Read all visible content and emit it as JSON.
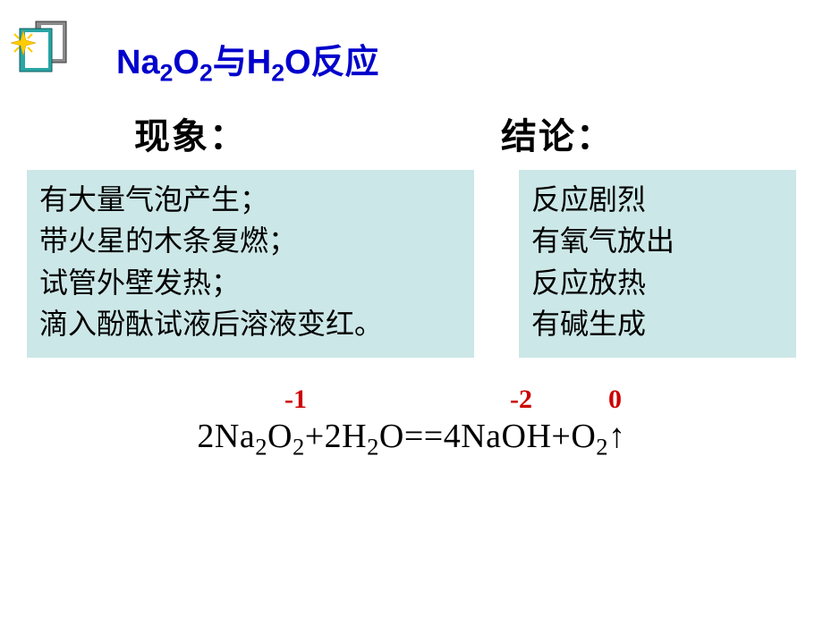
{
  "title_html": "Na<sub>2</sub>O<sub>2</sub>与H<sub>2</sub>O反应",
  "headings": {
    "left": "现象：",
    "right": "结论："
  },
  "phenomena": {
    "lines": [
      "有大量气泡产生；",
      "带火星的木条复燃；",
      "试管外壁发热；",
      "滴入酚酞试液后溶液变红。"
    ]
  },
  "conclusions": {
    "lines": [
      "反应剧烈",
      "有氧气放出",
      "反应放热",
      "有碱生成"
    ]
  },
  "oxidation_states": {
    "o1": "-1",
    "o2": "-2",
    "o3": "0"
  },
  "equation_html": "2Na<sub>2</sub>O<sub>2</sub>+2H<sub>2</sub>O==4NaOH+O<sub>2</sub>↑",
  "colors": {
    "title": "#0000cc",
    "box_bg": "#cce7e7",
    "oxidation": "#cc0000",
    "text": "#000000",
    "page_bg": "#ffffff"
  },
  "fonts": {
    "body": "SimHei",
    "equation": "Times New Roman",
    "heading": "STXingkai"
  },
  "icon": {
    "name": "book-sparkle-icon",
    "book_front": "#2aa5a5",
    "book_back": "#8a8a8a",
    "page": "#ffffff",
    "sparkle": "#ffcc00"
  }
}
